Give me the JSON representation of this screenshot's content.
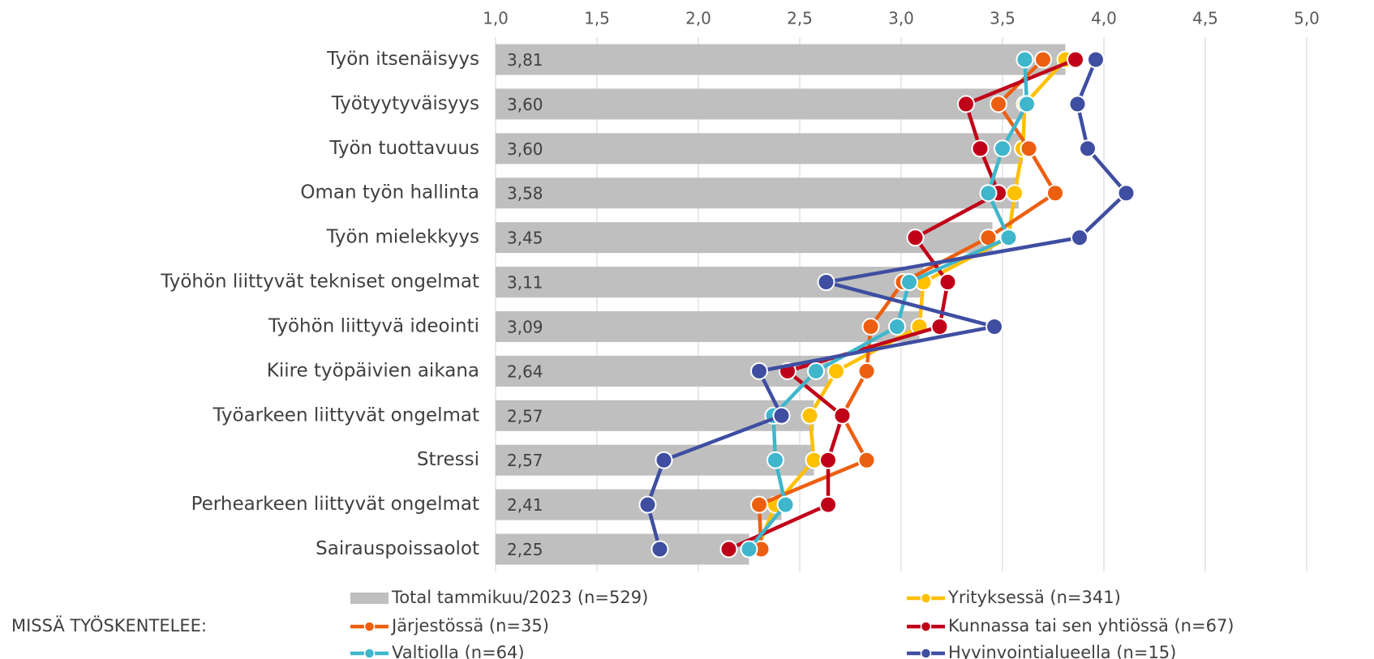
{
  "chart_data": {
    "type": "bar_line",
    "orientation": "horizontal",
    "categories": [
      "Työn itsenäisyys",
      "Työtyytyväisyys",
      "Työn tuottavuus",
      "Oman työn hallinta",
      "Työn mielekkyys",
      "Työhön liittyvät tekniset ongelmat",
      "Työhön liittyvä ideointi",
      "Kiire työpäivien aikana",
      "Työarkeen liittyvät ongelmat",
      "Stressi",
      "Perhearkeen liittyvät ongelmat",
      "Sairauspoissaolot"
    ],
    "xlim": [
      1,
      5
    ],
    "xticks": [
      {
        "value": 1,
        "label": "1,0"
      },
      {
        "value": 1.5,
        "label": "1,5"
      },
      {
        "value": 2,
        "label": "2,0"
      },
      {
        "value": 2.5,
        "label": "2,5"
      },
      {
        "value": 3,
        "label": "3,0"
      },
      {
        "value": 3.5,
        "label": "3,5"
      },
      {
        "value": 4,
        "label": "4,0"
      },
      {
        "value": 4.5,
        "label": "4,5"
      },
      {
        "value": 5,
        "label": "5,0"
      }
    ],
    "grid": true,
    "legend_title": "MISSÄ TYÖSKENTELEE:",
    "series": [
      {
        "name": "Total tammikuu/2023 (n=529)",
        "type": "bar",
        "color": "#bfbfbf",
        "values": [
          3.81,
          3.6,
          3.6,
          3.58,
          3.45,
          3.11,
          3.09,
          2.64,
          2.57,
          2.57,
          2.41,
          2.25
        ],
        "value_labels": [
          "3,81",
          "3,60",
          "3,60",
          "3,58",
          "3,45",
          "3,11",
          "3,09",
          "2,64",
          "2,57",
          "2,57",
          "2,41",
          "2,25"
        ]
      },
      {
        "name": "Yrityksessä (n=341)",
        "type": "line",
        "color": "#ffc000",
        "values": [
          3.81,
          3.61,
          3.6,
          3.56,
          3.53,
          3.11,
          3.09,
          2.68,
          2.55,
          2.57,
          2.38,
          2.29
        ]
      },
      {
        "name": "Järjestössä (n=35)",
        "type": "line",
        "color": "#ed5f10",
        "values": [
          3.7,
          3.48,
          3.63,
          3.76,
          3.43,
          3.01,
          2.85,
          2.83,
          2.71,
          2.83,
          2.3,
          2.31
        ]
      },
      {
        "name": "Kunnassa tai sen yhtiössä (n=67)",
        "type": "line",
        "color": "#c00018",
        "values": [
          3.86,
          3.32,
          3.39,
          3.48,
          3.07,
          3.23,
          3.19,
          2.44,
          2.71,
          2.64,
          2.64,
          2.15
        ]
      },
      {
        "name": "Valtiolla (n=64)",
        "type": "line",
        "color": "#3fb6cc",
        "values": [
          3.61,
          3.62,
          3.5,
          3.43,
          3.53,
          3.04,
          2.98,
          2.58,
          2.37,
          2.38,
          2.43,
          2.25
        ]
      },
      {
        "name": "Hyvinvointialueella (n=15)",
        "type": "line",
        "color": "#3f4ea1",
        "values": [
          3.96,
          3.87,
          3.92,
          4.11,
          3.88,
          2.63,
          3.46,
          2.3,
          2.41,
          1.83,
          1.75,
          1.81
        ]
      }
    ]
  }
}
